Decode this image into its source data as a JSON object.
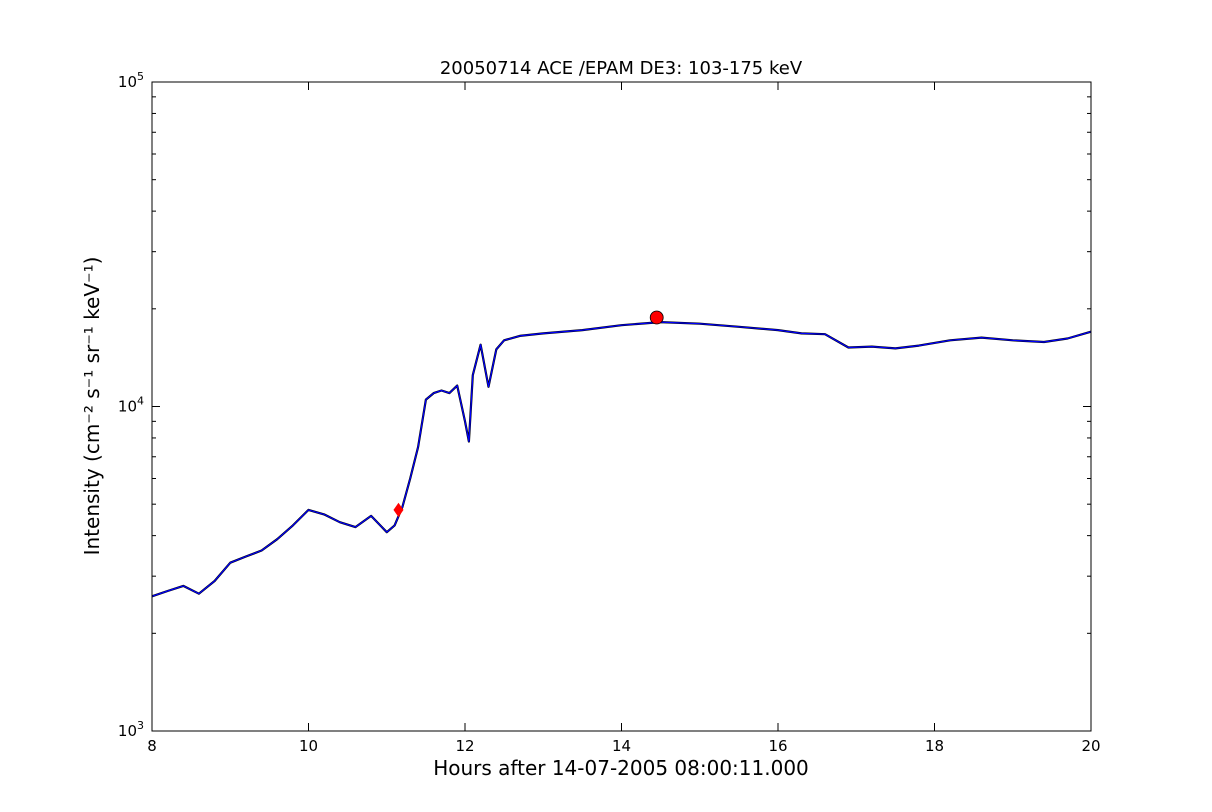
{
  "chart_data": {
    "type": "line",
    "title": "20050714 ACE /EPAM DE3: 103-175 keV",
    "xlabel": "Hours after 14-07-2005 08:00:11.000",
    "ylabel": "Intensity (cm⁻² s⁻¹ sr⁻¹ keV⁻¹)",
    "xlim": [
      8,
      20
    ],
    "ylim": [
      1000,
      100000
    ],
    "yscale": "log",
    "grid": false,
    "x_ticks": [
      {
        "value": 8,
        "label": "8"
      },
      {
        "value": 10,
        "label": "10"
      },
      {
        "value": 12,
        "label": "12"
      },
      {
        "value": 14,
        "label": "14"
      },
      {
        "value": 16,
        "label": "16"
      },
      {
        "value": 18,
        "label": "18"
      },
      {
        "value": 20,
        "label": "20"
      }
    ],
    "y_ticks": [
      {
        "value": 1000,
        "base": "10",
        "exp": "3"
      },
      {
        "value": 10000,
        "base": "10",
        "exp": "4"
      },
      {
        "value": 100000,
        "base": "10",
        "exp": "5"
      }
    ],
    "series": [
      {
        "role": "raw",
        "color": "#000000",
        "x": [
          8.0,
          8.2,
          8.4,
          8.6,
          8.8,
          9.0,
          9.2,
          9.4,
          9.6,
          9.8,
          10.0,
          10.2,
          10.4,
          10.6,
          10.8,
          11.0,
          11.1,
          11.2,
          11.3,
          11.4,
          11.5,
          11.6,
          11.7,
          11.8,
          11.9,
          12.0,
          12.05,
          12.1,
          12.2,
          12.3,
          12.4,
          12.5,
          12.7,
          13.0,
          13.5,
          14.0,
          14.5,
          15.0,
          15.5,
          16.0,
          16.3,
          16.6,
          16.9,
          17.2,
          17.5,
          17.8,
          18.2,
          18.6,
          19.0,
          19.4,
          19.7,
          20.0
        ],
        "y": [
          2600,
          2700,
          2800,
          2650,
          2900,
          3300,
          3450,
          3600,
          3900,
          4300,
          4800,
          4650,
          4400,
          4250,
          4600,
          4100,
          4300,
          4900,
          6000,
          7500,
          10500,
          11000,
          11200,
          11000,
          11600,
          9000,
          7800,
          12500,
          15500,
          11500,
          15000,
          16000,
          16500,
          16800,
          17200,
          17800,
          18200,
          18000,
          17600,
          17200,
          16800,
          16700,
          15200,
          15300,
          15100,
          15400,
          16000,
          16300,
          16000,
          15800,
          16200,
          17000
        ]
      },
      {
        "role": "smoothed",
        "color": "#0000ff",
        "x": [
          8.0,
          8.2,
          8.4,
          8.6,
          8.8,
          9.0,
          9.2,
          9.4,
          9.6,
          9.8,
          10.0,
          10.2,
          10.4,
          10.6,
          10.8,
          11.0,
          11.1,
          11.2,
          11.3,
          11.4,
          11.5,
          11.6,
          11.7,
          11.8,
          11.9,
          12.0,
          12.05,
          12.1,
          12.2,
          12.3,
          12.4,
          12.5,
          12.7,
          13.0,
          13.5,
          14.0,
          14.5,
          15.0,
          15.5,
          16.0,
          16.3,
          16.6,
          16.9,
          17.2,
          17.5,
          17.8,
          18.2,
          18.6,
          19.0,
          19.4,
          19.7,
          20.0
        ],
        "y": [
          2600,
          2700,
          2800,
          2650,
          2900,
          3300,
          3450,
          3600,
          3900,
          4300,
          4800,
          4650,
          4400,
          4250,
          4600,
          4100,
          4300,
          4900,
          6000,
          7500,
          10500,
          11000,
          11200,
          11000,
          11600,
          9000,
          7800,
          12500,
          15500,
          11500,
          15000,
          16000,
          16500,
          16800,
          17200,
          17800,
          18200,
          18000,
          17600,
          17200,
          16800,
          16700,
          15200,
          15300,
          15100,
          15400,
          16000,
          16300,
          16000,
          15800,
          16200,
          17000
        ]
      }
    ],
    "markers": [
      {
        "shape": "diamond",
        "color": "#ff0000",
        "x": 11.15,
        "y": 4800
      },
      {
        "shape": "circle",
        "color": "#ff0000",
        "x": 14.45,
        "y": 18800
      }
    ]
  }
}
